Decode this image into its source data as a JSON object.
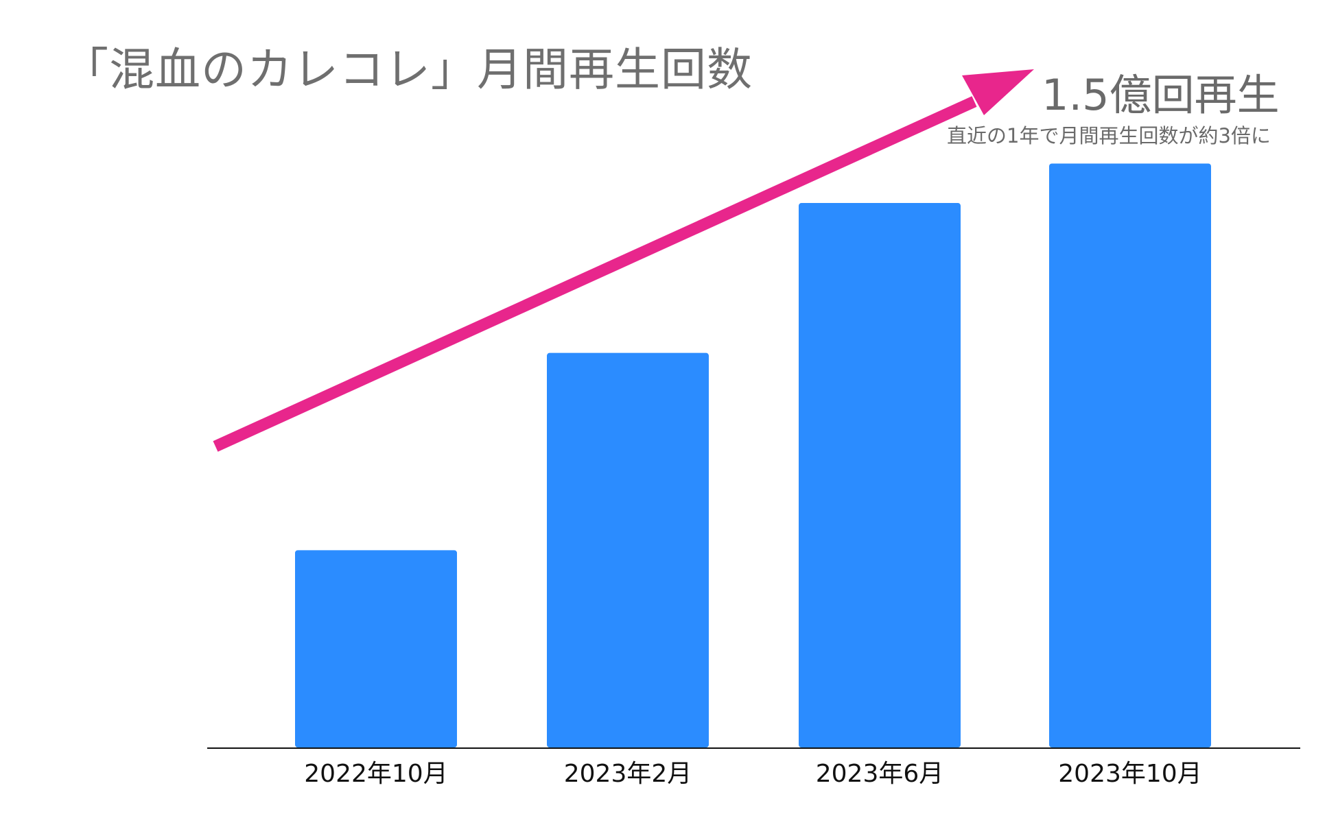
{
  "chart_data": {
    "type": "bar",
    "title": "「混血のカレコレ」月間再生回数",
    "categories": [
      "2022年10月",
      "2023年2月",
      "2023年6月",
      "2023年10月"
    ],
    "series": [
      {
        "values": [
          0.5,
          1.0,
          1.38,
          1.48
        ]
      }
    ],
    "xlabel": "",
    "ylabel": "",
    "ylim": [
      0,
      1.5
    ],
    "y_unit": "億回再生",
    "grid": false,
    "legend": "none",
    "bar_color": "#2b8cff",
    "annotations": [
      {
        "text": "1.5億回再生",
        "role": "headline"
      },
      {
        "text": "直近の1年で月間再生回数が約3倍に",
        "role": "subtext"
      }
    ],
    "trend_arrow": {
      "color": "#e8268c",
      "direction": "up-right"
    }
  },
  "colors": {
    "axis": "#111111",
    "title": "#6f6f6f",
    "annotation": "#6a6a6a"
  }
}
